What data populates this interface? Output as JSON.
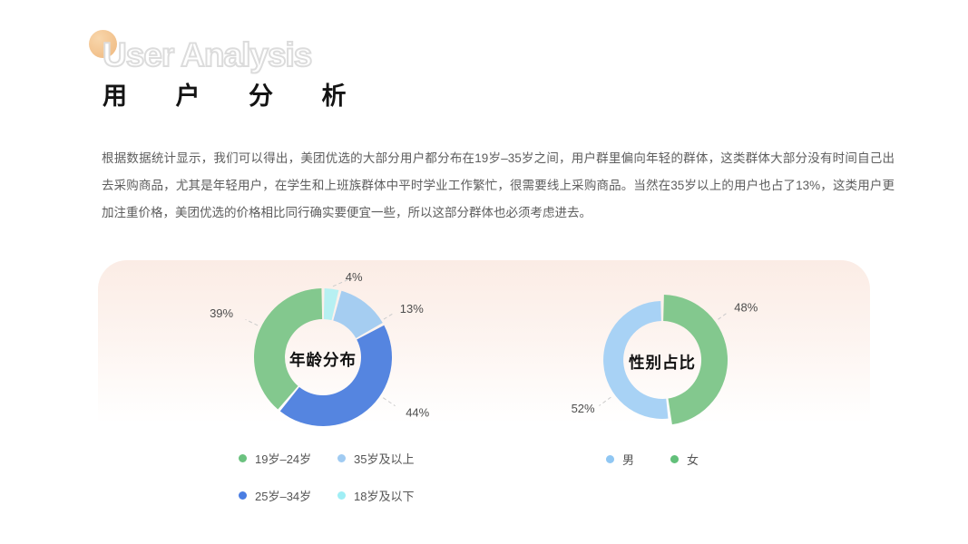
{
  "page": {
    "title_en": "User Analysis",
    "title_zh": "用 户 分 析",
    "description": "根据数据统计显示，我们可以得出，美团优选的大部分用户都分布在19岁–35岁之间，用户群里偏向年轻的群体，这类群体大部分没有时间自己出去采购商品，尤其是年轻用户，在学生和上班族群体中平时学业工作繁忙，很需要线上采购商品。当然在35岁以上的用户也占了13%，这类用户更加注重价格，美团优选的价格相比同行确实要便宜一些，所以这部分群体也必须考虑进去。"
  },
  "colors": {
    "accent_circle": "#f2bd8b",
    "card_top": "#fbece5",
    "label_text": "#4d4d4d",
    "leader_line": "#cccccc",
    "legend_text": "#555555"
  },
  "chart_data": [
    {
      "type": "pie",
      "title": "年龄分布",
      "legend_position": "bottom",
      "slices": [
        {
          "label": "18岁及以下",
          "value": 4,
          "pct_label": "4%",
          "color": "#b7f0f2"
        },
        {
          "label": "35岁及以上",
          "value": 13,
          "pct_label": "13%",
          "color": "#a5cdf1"
        },
        {
          "label": "25岁–34岁",
          "value": 44,
          "pct_label": "44%",
          "color": "#5585e0"
        },
        {
          "label": "19岁–24岁",
          "value": 39,
          "pct_label": "39%",
          "color": "#83c88e"
        }
      ],
      "legend": [
        {
          "label": "19岁–24岁",
          "color": "#6bc27f"
        },
        {
          "label": "35岁及以上",
          "color": "#a0cbf2"
        },
        {
          "label": "25岁–34岁",
          "color": "#4a7de2"
        },
        {
          "label": "18岁及以下",
          "color": "#9feef5"
        }
      ]
    },
    {
      "type": "pie",
      "title": "性别占比",
      "legend_position": "bottom",
      "slices": [
        {
          "label": "女",
          "value": 48,
          "pct_label": "48%",
          "color": "#83c88e",
          "emphasis": true
        },
        {
          "label": "男",
          "value": 52,
          "pct_label": "52%",
          "color": "#a8d2f5"
        }
      ],
      "legend": [
        {
          "label": "男",
          "color": "#90c7f3"
        },
        {
          "label": "女",
          "color": "#62c07a"
        }
      ]
    }
  ]
}
